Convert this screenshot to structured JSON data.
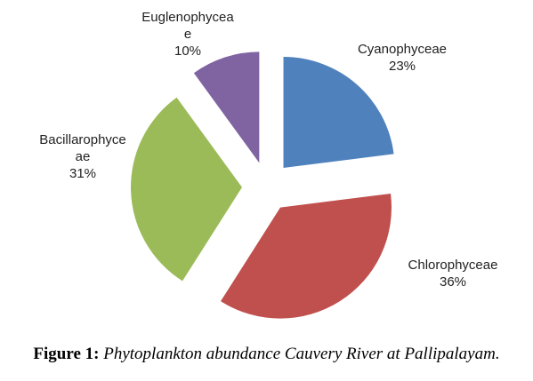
{
  "chart_data": {
    "type": "pie",
    "exploded": true,
    "title": "",
    "categories": [
      "Cyanophyceae",
      "Chlorophyceae",
      "Bacillarophyceae",
      "Euglenophyceae"
    ],
    "values": [
      23,
      36,
      31,
      10
    ],
    "value_labels": [
      "23%",
      "36%",
      "31%",
      "10%"
    ],
    "label_lines": [
      [
        "Cyanophyceae"
      ],
      [
        "Chlorophyceae"
      ],
      [
        "Bacillarophyce",
        "ae"
      ],
      [
        "Euglenophycea",
        "e"
      ]
    ],
    "colors": [
      "#4F81BD",
      "#C0504D",
      "#9BBB59",
      "#8064A2"
    ],
    "legend": "none"
  },
  "caption": {
    "prefix": "Figure 1:",
    "text": "Phytoplankton abundance Cauvery River at Pallipalayam."
  }
}
